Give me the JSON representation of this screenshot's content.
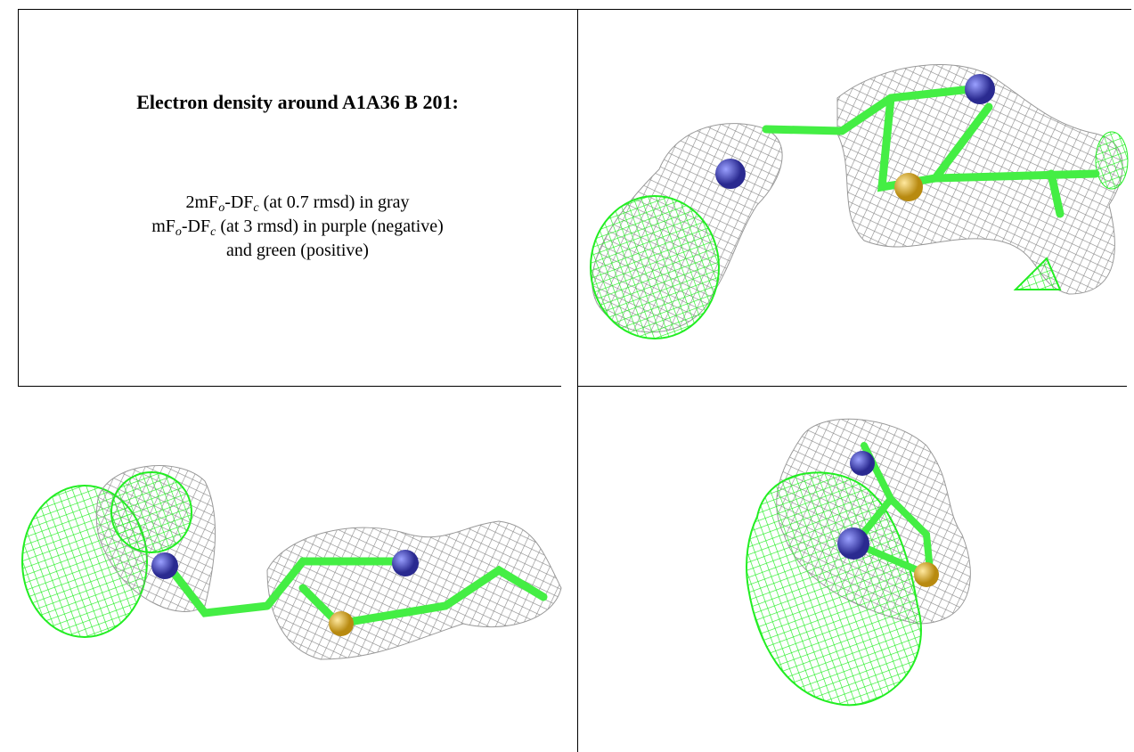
{
  "caption": {
    "title": "Electron density around A1A36 B 201:",
    "lines": [
      {
        "parts": [
          "2mF",
          "o",
          "-DF",
          "c",
          " (at 0.7 rmsd) in gray"
        ]
      },
      {
        "parts": [
          "mF",
          "o",
          "-DF",
          "c",
          " (at 3 rmsd) in purple (negative)"
        ]
      },
      {
        "parts": [
          "and green (positive)"
        ]
      }
    ]
  }
}
